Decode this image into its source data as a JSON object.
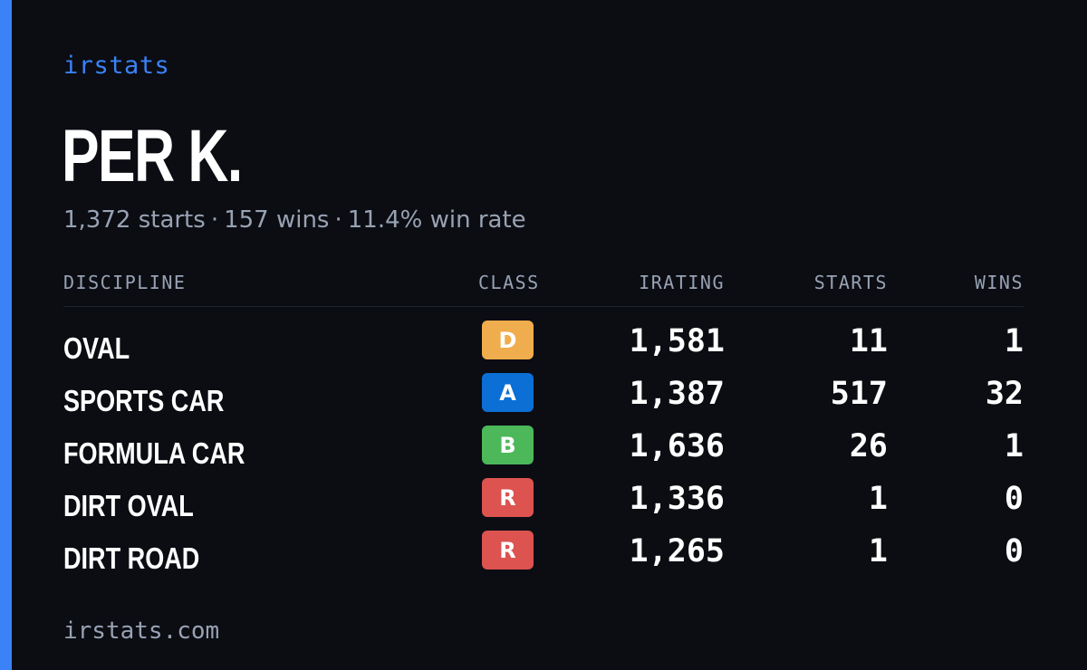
{
  "brand": "irstats",
  "player": {
    "name": "PER K."
  },
  "summary": {
    "starts": "1,372 starts",
    "wins": "157 wins",
    "win_rate": "11.4% win rate",
    "separator": "·"
  },
  "table": {
    "headers": {
      "discipline": "DISCIPLINE",
      "class": "CLASS",
      "irating": "IRATING",
      "starts": "STARTS",
      "wins": "WINS"
    },
    "rows": [
      {
        "discipline": "OVAL",
        "class": "D",
        "irating": "1,581",
        "starts": "11",
        "wins": "1"
      },
      {
        "discipline": "SPORTS CAR",
        "class": "A",
        "irating": "1,387",
        "starts": "517",
        "wins": "32"
      },
      {
        "discipline": "FORMULA CAR",
        "class": "B",
        "irating": "1,636",
        "starts": "26",
        "wins": "1"
      },
      {
        "discipline": "DIRT OVAL",
        "class": "R",
        "irating": "1,336",
        "starts": "1",
        "wins": "0"
      },
      {
        "discipline": "DIRT ROAD",
        "class": "R",
        "irating": "1,265",
        "starts": "1",
        "wins": "0"
      }
    ]
  },
  "class_colors": {
    "D": "#f0ad4e",
    "A": "#0b6fd6",
    "B": "#4cb85a",
    "R": "#dc5350"
  },
  "colors": {
    "accent": "#3b82f6",
    "background": "#0b0d13",
    "muted": "#98a2b3"
  },
  "footer": {
    "url": "irstats.com"
  }
}
